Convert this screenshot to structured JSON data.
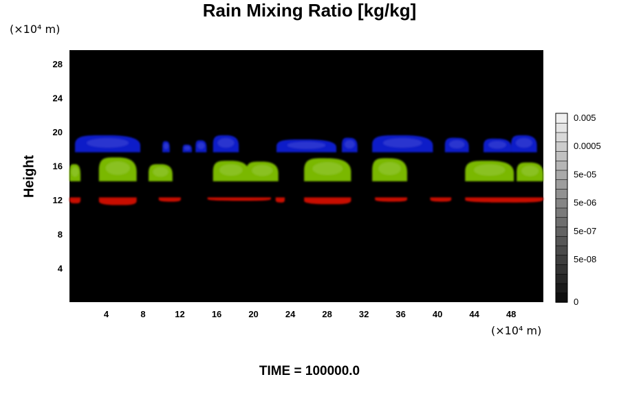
{
  "chart_data": {
    "type": "heatmap",
    "title": "Rain Mixing Ratio [kg/kg]",
    "ylabel": "Height",
    "y_unit_label": "(×10⁴ m)",
    "x_unit_label": "(×10⁴ m)",
    "time_label": "TIME = 100000.0",
    "xlim": [
      0,
      51.5
    ],
    "ylim": [
      0,
      29.6
    ],
    "x_ticks": [
      4,
      8,
      12,
      16,
      20,
      24,
      28,
      32,
      36,
      40,
      44,
      48
    ],
    "y_ticks": [
      4,
      8,
      12,
      16,
      20,
      24,
      28
    ],
    "background_color": "#000000",
    "colorbar": {
      "levels": 20,
      "tick_labels": [
        "0.005",
        "0.0005",
        "5e-05",
        "5e-06",
        "5e-07",
        "5e-08",
        "0"
      ],
      "tick_level_index": [
        19,
        16,
        13,
        10,
        7,
        4,
        0
      ]
    },
    "bands": [
      {
        "name": "",
        "color": "#0a1ac8",
        "y_base": 17.6,
        "cells": [
          {
            "x0": 0.6,
            "x1": 7.7,
            "top": 19.6
          },
          {
            "x0": 10.1,
            "x1": 10.9,
            "top": 18.9
          },
          {
            "x0": 12.3,
            "x1": 13.3,
            "top": 18.5
          },
          {
            "x0": 13.7,
            "x1": 14.9,
            "top": 19.0
          },
          {
            "x0": 15.6,
            "x1": 18.4,
            "top": 19.6
          },
          {
            "x0": 22.5,
            "x1": 29.0,
            "top": 19.1
          },
          {
            "x0": 29.6,
            "x1": 31.3,
            "top": 19.3
          },
          {
            "x0": 32.9,
            "x1": 39.5,
            "top": 19.6
          },
          {
            "x0": 40.8,
            "x1": 43.4,
            "top": 19.3
          },
          {
            "x0": 45.0,
            "x1": 48.0,
            "top": 19.2
          },
          {
            "x0": 48.0,
            "x1": 50.8,
            "top": 19.6
          }
        ]
      },
      {
        "name": "",
        "color": "#7ab800",
        "y_base": 14.2,
        "cells": [
          {
            "x0": 0.0,
            "x1": 1.2,
            "top": 16.2
          },
          {
            "x0": 3.2,
            "x1": 7.3,
            "top": 17.0
          },
          {
            "x0": 8.6,
            "x1": 11.2,
            "top": 16.2
          },
          {
            "x0": 15.6,
            "x1": 19.5,
            "top": 16.6
          },
          {
            "x0": 19.2,
            "x1": 22.7,
            "top": 16.5
          },
          {
            "x0": 25.5,
            "x1": 30.6,
            "top": 16.9
          },
          {
            "x0": 32.9,
            "x1": 36.7,
            "top": 16.9
          },
          {
            "x0": 43.0,
            "x1": 48.3,
            "top": 16.6
          },
          {
            "x0": 48.6,
            "x1": 51.5,
            "top": 16.4
          }
        ]
      },
      {
        "name": "",
        "color": "#c80a00",
        "y_base": 12.3,
        "cells": [
          {
            "x0": 0.0,
            "x1": 1.2,
            "bottom": 11.6
          },
          {
            "x0": 3.2,
            "x1": 7.3,
            "bottom": 11.4
          },
          {
            "x0": 9.7,
            "x1": 12.1,
            "bottom": 11.8
          },
          {
            "x0": 15.0,
            "x1": 21.9,
            "bottom": 11.9
          },
          {
            "x0": 22.4,
            "x1": 23.4,
            "bottom": 11.7
          },
          {
            "x0": 25.5,
            "x1": 30.6,
            "bottom": 11.5
          },
          {
            "x0": 33.2,
            "x1": 36.7,
            "bottom": 11.8
          },
          {
            "x0": 39.2,
            "x1": 41.5,
            "bottom": 11.8
          },
          {
            "x0": 43.0,
            "x1": 51.5,
            "bottom": 11.7
          }
        ]
      }
    ]
  }
}
